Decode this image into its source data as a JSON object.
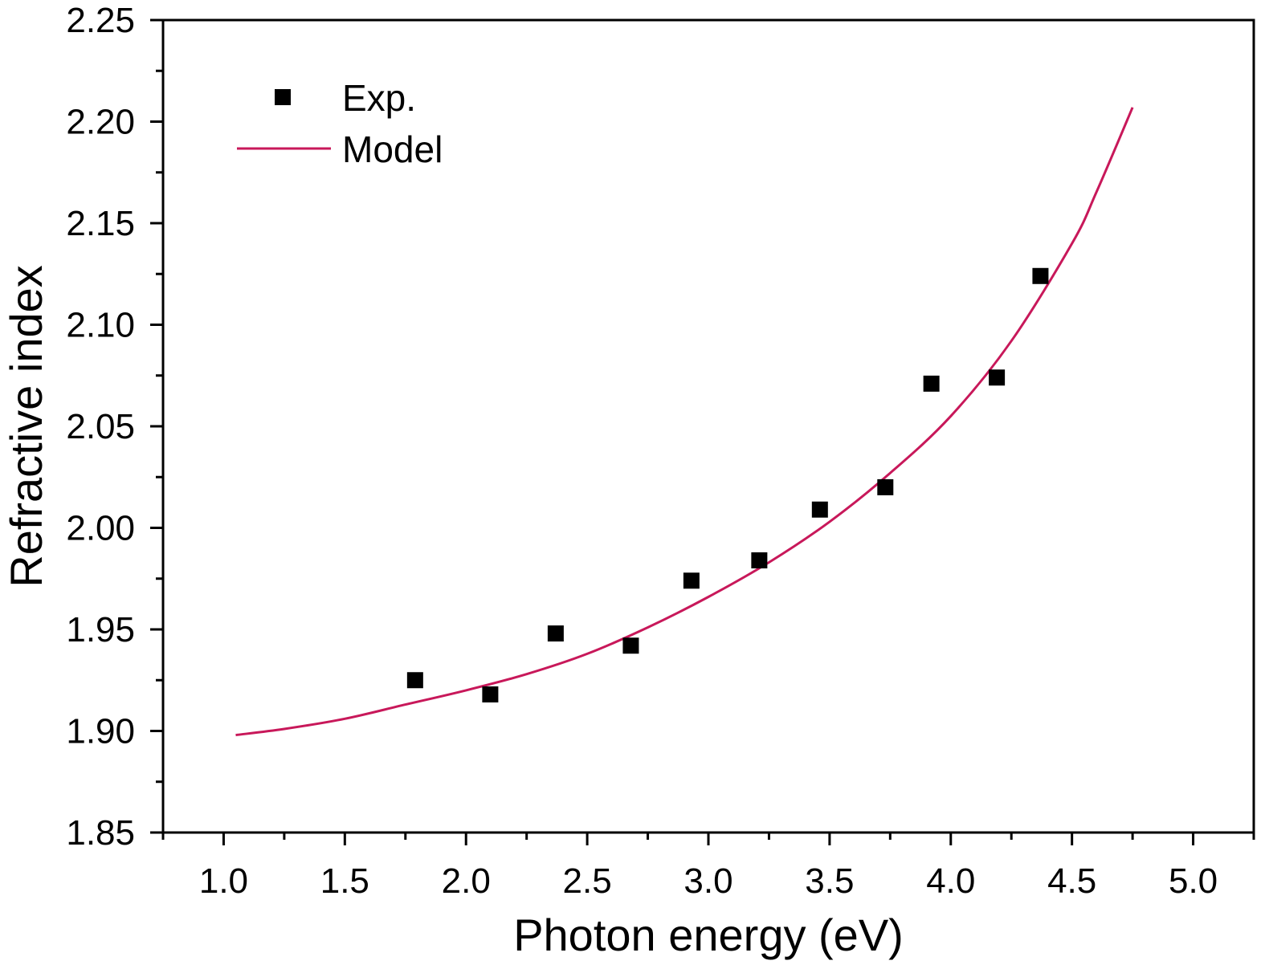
{
  "chart_data": {
    "type": "scatter",
    "xlabel": "Photon energy (eV)",
    "ylabel": "Refractive index",
    "xlim": [
      0.75,
      5.25
    ],
    "ylim": [
      1.85,
      2.25
    ],
    "xticks": [
      1.0,
      1.5,
      2.0,
      2.5,
      3.0,
      3.5,
      4.0,
      4.5,
      5.0
    ],
    "xtick_labels": [
      "1.0",
      "1.5",
      "2.0",
      "2.5",
      "3.0",
      "3.5",
      "4.0",
      "4.5",
      "5.0"
    ],
    "yticks": [
      1.85,
      1.9,
      1.95,
      2.0,
      2.05,
      2.1,
      2.15,
      2.2,
      2.25
    ],
    "ytick_labels": [
      "1.85",
      "1.90",
      "1.95",
      "2.00",
      "2.05",
      "2.10",
      "2.15",
      "2.20",
      "2.25"
    ],
    "grid": false,
    "legend": {
      "position": "top-left",
      "entries": [
        {
          "label": "Exp.",
          "marker": "square",
          "color": "#000000"
        },
        {
          "label": "Model",
          "marker": "line",
          "color": "#c8185a"
        }
      ]
    },
    "series": [
      {
        "name": "Exp.",
        "kind": "scatter",
        "marker": "square",
        "color": "#000000",
        "x": [
          1.79,
          2.1,
          2.37,
          2.68,
          2.93,
          3.21,
          3.46,
          3.73,
          3.92,
          4.19,
          4.37
        ],
        "y": [
          1.925,
          1.918,
          1.948,
          1.942,
          1.974,
          1.984,
          2.009,
          2.02,
          2.071,
          2.074,
          2.124
        ]
      },
      {
        "name": "Model",
        "kind": "line",
        "color": "#c8185a",
        "x": [
          1.05,
          1.25,
          1.5,
          1.75,
          2.0,
          2.25,
          2.5,
          2.75,
          3.0,
          3.25,
          3.5,
          3.75,
          4.0,
          4.25,
          4.5,
          4.6,
          4.75
        ],
        "y": [
          1.898,
          1.901,
          1.906,
          1.913,
          1.92,
          1.928,
          1.938,
          1.951,
          1.966,
          1.983,
          2.003,
          2.027,
          2.055,
          2.092,
          2.14,
          2.165,
          2.207
        ]
      }
    ]
  }
}
